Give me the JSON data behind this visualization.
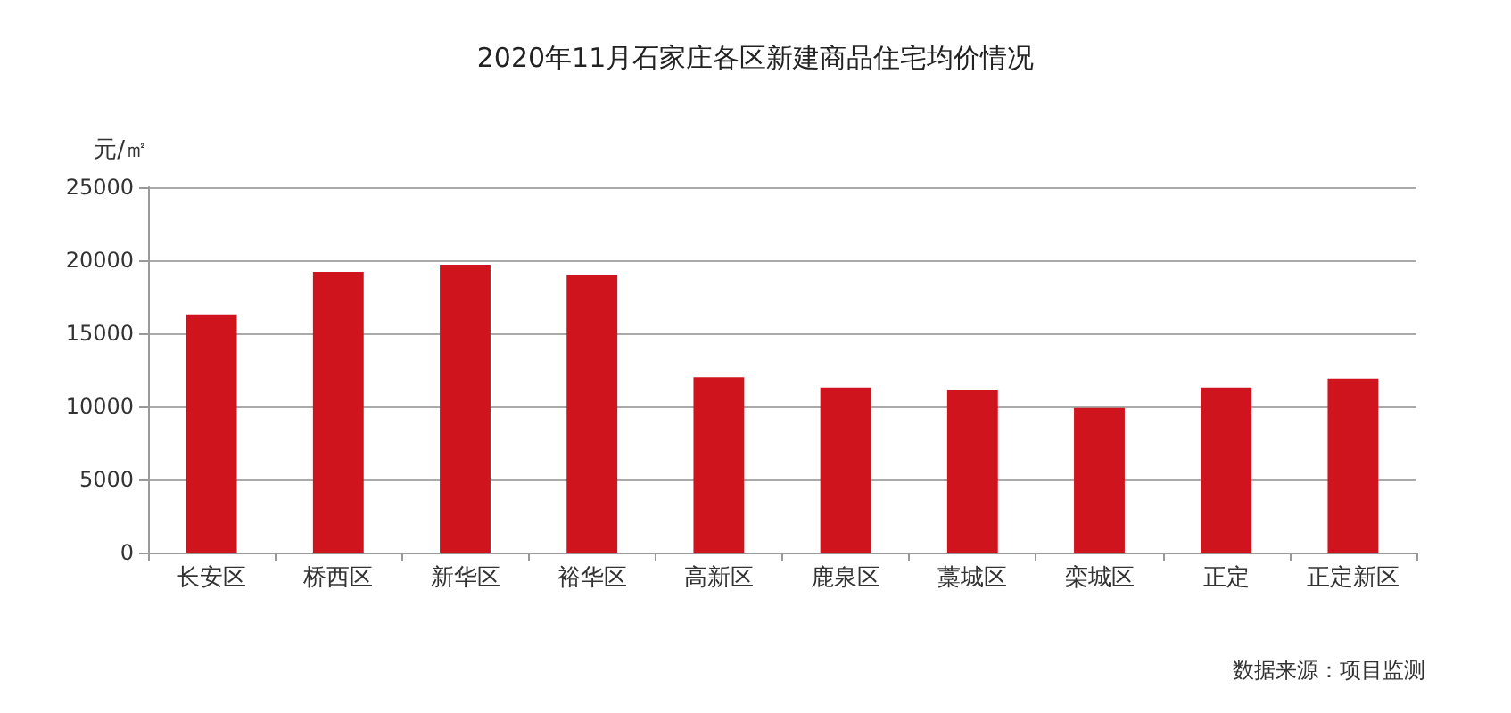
{
  "chart_data": {
    "type": "bar",
    "title": "2020年11月石家庄各区新建商品住宅均价情况",
    "ylabel": "元/㎡",
    "categories": [
      "长安区",
      "桥西区",
      "新华区",
      "裕华区",
      "高新区",
      "鹿泉区",
      "藁城区",
      "栾城区",
      "正定",
      "正定新区"
    ],
    "values": [
      16300,
      19200,
      19700,
      19000,
      12000,
      11300,
      11100,
      9900,
      11300,
      11900
    ],
    "color": "#d0141e",
    "ylim": [
      0,
      25000
    ],
    "yticks": [
      0,
      5000,
      10000,
      15000,
      20000,
      25000
    ],
    "grid": "y",
    "annotations": [
      "数据来源：项目监测"
    ]
  }
}
